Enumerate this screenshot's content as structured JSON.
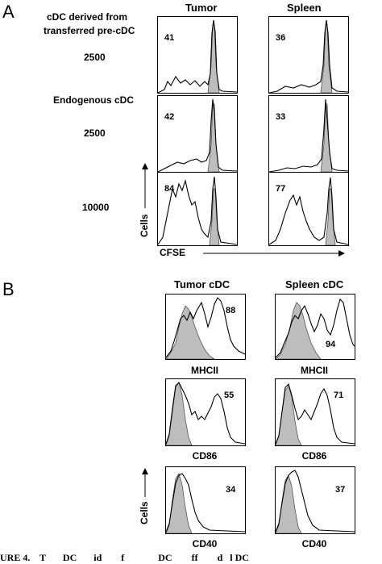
{
  "panelA": {
    "letter": "A",
    "col_headers": [
      "Tumor",
      "Spleen"
    ],
    "row_titles": {
      "row1_line1": "cDC derived from",
      "row1_line2": "transferred pre-cDC",
      "row2": "Endogenous  cDC"
    },
    "row_numbers": [
      "2500",
      "2500",
      "10000"
    ],
    "percentages": [
      [
        "41",
        "36"
      ],
      [
        "42",
        "33"
      ],
      [
        "84",
        "77"
      ]
    ],
    "axis_y": "Cells",
    "axis_x": "CFSE"
  },
  "panelB": {
    "letter": "B",
    "col_headers": [
      "Tumor cDC",
      "Spleen cDC"
    ],
    "markers": [
      "MHCII",
      "CD86",
      "CD40"
    ],
    "percentages": [
      [
        "88",
        "94"
      ],
      [
        "55",
        "71"
      ],
      [
        "34",
        "37"
      ]
    ],
    "axis_y": "Cells"
  },
  "caption_fragment": "URE 4.    T       DC       id        f              DC        ff        d   l DC"
}
